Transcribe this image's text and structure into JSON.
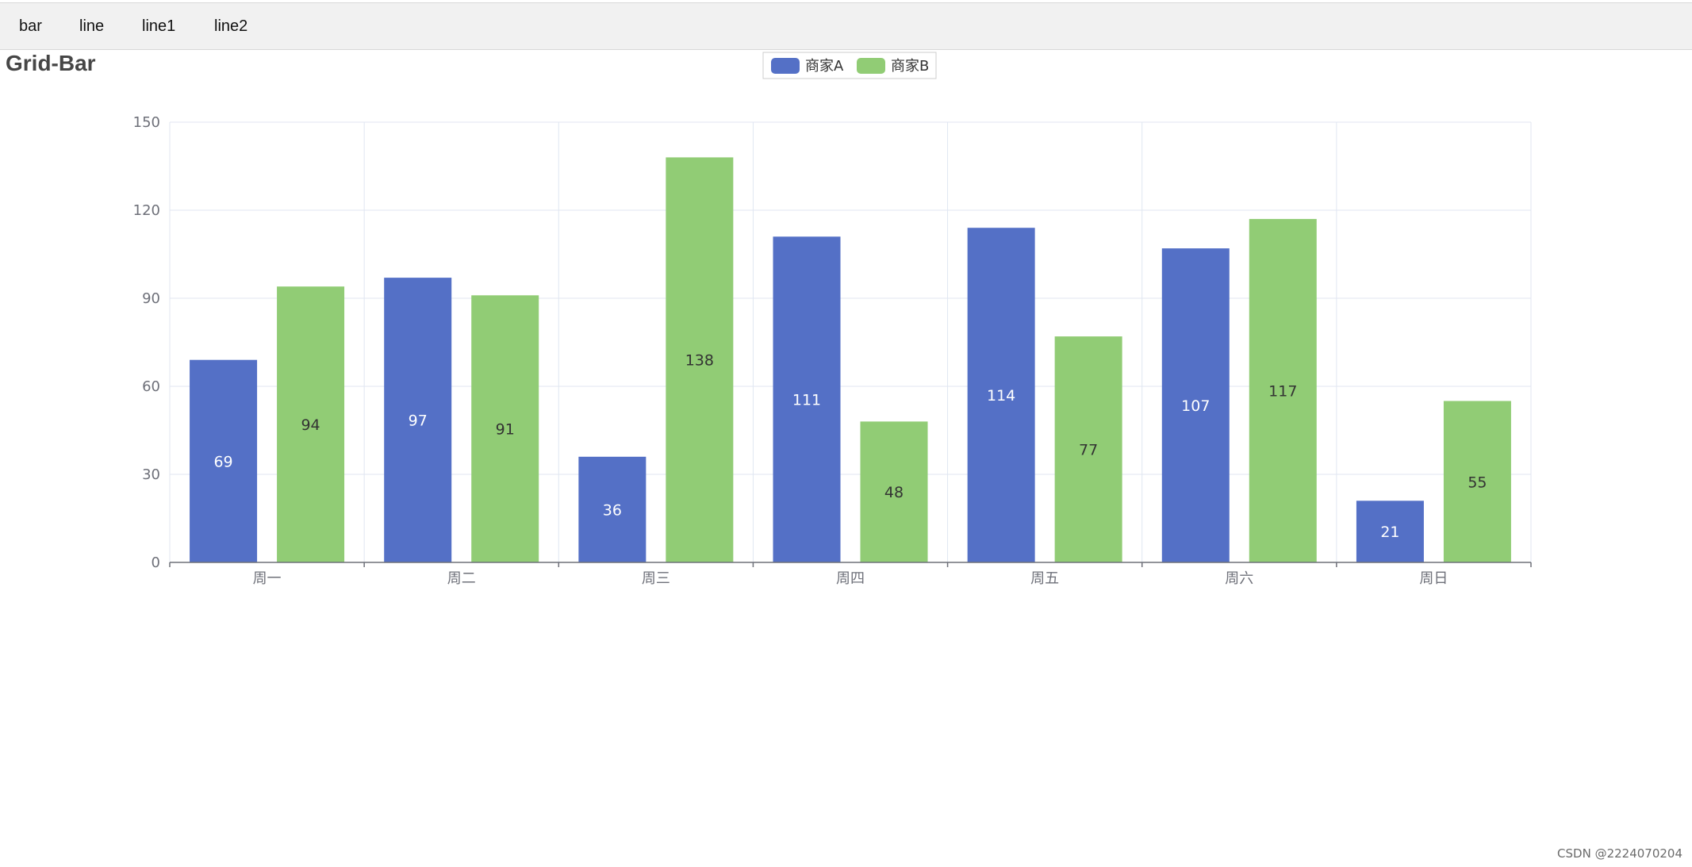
{
  "nav": {
    "tabs": [
      {
        "label": "bar"
      },
      {
        "label": "line"
      },
      {
        "label": "line1"
      },
      {
        "label": "line2"
      }
    ]
  },
  "page": {
    "title": "Grid-Bar",
    "watermark": "CSDN @2224070204"
  },
  "chart_data": {
    "type": "bar",
    "title": "",
    "xlabel": "",
    "ylabel": "",
    "categories": [
      "周一",
      "周二",
      "周三",
      "周四",
      "周五",
      "周六",
      "周日"
    ],
    "series": [
      {
        "name": "商家A",
        "color": "#5470c6",
        "values": [
          69,
          97,
          36,
          111,
          114,
          107,
          21
        ]
      },
      {
        "name": "商家B",
        "color": "#91cc75",
        "values": [
          94,
          91,
          138,
          48,
          77,
          117,
          55
        ]
      }
    ],
    "ylim": [
      0,
      150
    ],
    "yticks": [
      0,
      30,
      60,
      90,
      120,
      150
    ],
    "grid": true,
    "legend_position": "top-center",
    "data_labels": true
  }
}
